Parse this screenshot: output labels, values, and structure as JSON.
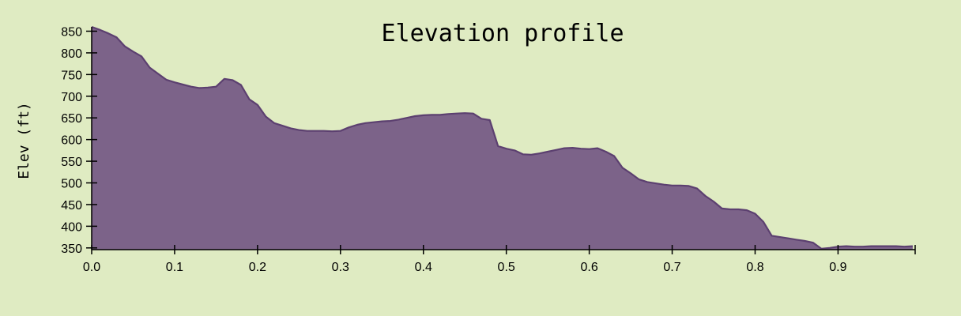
{
  "chart_data": {
    "type": "area",
    "title": "Elevation profile",
    "xlabel": "",
    "ylabel": "Elev (ft)",
    "xlim": [
      0,
      0.993
    ],
    "ylim": [
      346,
      860
    ],
    "xticks": [
      "0.0",
      "0.1",
      "0.2",
      "0.3",
      "0.4",
      "0.5",
      "0.6",
      "0.7",
      "0.8",
      "0.9"
    ],
    "yticks": [
      "350",
      "400",
      "450",
      "500",
      "550",
      "600",
      "650",
      "700",
      "750",
      "800",
      "850"
    ],
    "grid": false,
    "fill_color": "#7c6389",
    "line_color": "#5c4070",
    "background": "#dfebc2",
    "series": [
      {
        "x": [
          0,
          0.01,
          0.02,
          0.03,
          0.04,
          0.05,
          0.06,
          0.07,
          0.08,
          0.09,
          0.1,
          0.11,
          0.12,
          0.13,
          0.14,
          0.15,
          0.16,
          0.17,
          0.18,
          0.19,
          0.2,
          0.21,
          0.22,
          0.23,
          0.24,
          0.25,
          0.26,
          0.27,
          0.28,
          0.29,
          0.3,
          0.31,
          0.32,
          0.33,
          0.34,
          0.35,
          0.36,
          0.37,
          0.38,
          0.39,
          0.4,
          0.41,
          0.42,
          0.43,
          0.44,
          0.45,
          0.46,
          0.47,
          0.48,
          0.49,
          0.5,
          0.51,
          0.52,
          0.53,
          0.54,
          0.55,
          0.56,
          0.57,
          0.58,
          0.59,
          0.6,
          0.61,
          0.62,
          0.63,
          0.64,
          0.65,
          0.66,
          0.67,
          0.68,
          0.69,
          0.7,
          0.71,
          0.72,
          0.73,
          0.74,
          0.75,
          0.76,
          0.77,
          0.78,
          0.79,
          0.8,
          0.81,
          0.82,
          0.83,
          0.84,
          0.85,
          0.86,
          0.87,
          0.88,
          0.89,
          0.9,
          0.91,
          0.92,
          0.93,
          0.94,
          0.95,
          0.96,
          0.97,
          0.98,
          0.99
        ],
        "y": [
          860,
          853,
          845,
          836,
          815,
          803,
          792,
          766,
          752,
          738,
          732,
          727,
          722,
          719,
          720,
          722,
          740,
          737,
          726,
          693,
          680,
          653,
          638,
          632,
          626,
          622,
          620,
          620,
          620,
          619,
          620,
          628,
          634,
          638,
          640,
          642,
          643,
          646,
          650,
          654,
          656,
          657,
          657,
          659,
          660,
          661,
          660,
          648,
          645,
          585,
          579,
          575,
          566,
          565,
          568,
          572,
          576,
          580,
          581,
          579,
          578,
          580,
          572,
          562,
          535,
          522,
          508,
          502,
          499,
          496,
          494,
          494,
          493,
          487,
          470,
          457,
          441,
          439,
          439,
          437,
          429,
          410,
          378,
          375,
          372,
          369,
          366,
          362,
          348,
          350,
          353,
          354,
          353,
          353,
          354,
          354,
          354,
          354,
          353,
          354
        ]
      }
    ]
  }
}
